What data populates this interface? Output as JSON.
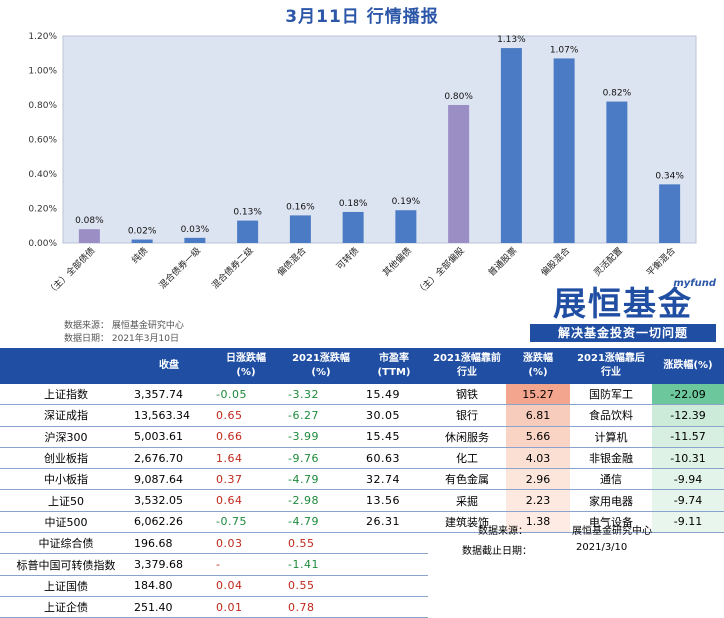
{
  "title": "3月11日  行情播报",
  "chart_data": {
    "type": "bar",
    "categories": [
      "（主）全部债债",
      "纯债",
      "混合债券一级",
      "混合债券二级",
      "偏债混合",
      "可转债",
      "其他偏债",
      "（主）全部偏股",
      "普通股票",
      "偏股混合",
      "灵活配置",
      "平衡混合"
    ],
    "values": [
      0.08,
      0.02,
      0.03,
      0.13,
      0.16,
      0.18,
      0.19,
      0.8,
      1.13,
      1.07,
      0.82,
      0.34
    ],
    "data_labels": [
      "0.08%",
      "0.02%",
      "0.03%",
      "0.13%",
      "0.16%",
      "0.18%",
      "0.19%",
      "0.80%",
      "1.13%",
      "1.07%",
      "0.82%",
      "0.34%"
    ],
    "highlight_colors": [
      "#9b8ec4",
      "#4a7bc4",
      "#4a7bc4",
      "#4a7bc4",
      "#4a7bc4",
      "#4a7bc4",
      "#4a7bc4",
      "#9b8ec4",
      "#4a7bc4",
      "#4a7bc4",
      "#4a7bc4",
      "#4a7bc4"
    ],
    "yticks": [
      "0.00%",
      "0.20%",
      "0.40%",
      "0.60%",
      "0.80%",
      "1.00%",
      "1.20%"
    ],
    "ylim": [
      0,
      1.2
    ],
    "plot_bg": "#dde4f1",
    "title": "",
    "xlabel": "",
    "ylabel": ""
  },
  "source": {
    "line1": "数据来源：  展恒基金研究中心",
    "line2": "数据日期：  2021年3月10日"
  },
  "logo": {
    "my": "myfund",
    "main": "展恒基金",
    "slogan": "解决基金投资一切问题"
  },
  "left_table": {
    "headers": [
      "",
      "收盘",
      "日涨跌幅\n(%)",
      "2021涨跌幅\n(%)",
      "市盈率\n(TTM)"
    ],
    "rows": [
      {
        "name": "上证指数",
        "close": "3,357.74",
        "day": "-0.05",
        "ytd": "-3.32",
        "pe": "15.49"
      },
      {
        "name": "深证成指",
        "close": "13,563.34",
        "day": "0.65",
        "ytd": "-6.27",
        "pe": "30.05"
      },
      {
        "name": "沪深300",
        "close": "5,003.61",
        "day": "0.66",
        "ytd": "-3.99",
        "pe": "15.45"
      },
      {
        "name": "创业板指",
        "close": "2,676.70",
        "day": "1.64",
        "ytd": "-9.76",
        "pe": "60.63"
      },
      {
        "name": "中小板指",
        "close": "9,087.64",
        "day": "0.37",
        "ytd": "-4.79",
        "pe": "32.74"
      },
      {
        "name": "上证50",
        "close": "3,532.05",
        "day": "0.64",
        "ytd": "-2.98",
        "pe": "13.56"
      },
      {
        "name": "中证500",
        "close": "6,062.26",
        "day": "-0.75",
        "ytd": "-4.79",
        "pe": "26.31"
      },
      {
        "name": "中证综合债",
        "close": "196.68",
        "day": "0.03",
        "ytd": "0.55",
        "pe": ""
      },
      {
        "name": "标普中国可转债指数",
        "close": "3,379.68",
        "day": "-",
        "ytd": "-1.41",
        "pe": ""
      },
      {
        "name": "上证国债",
        "close": "184.80",
        "day": "0.04",
        "ytd": "0.55",
        "pe": ""
      },
      {
        "name": "上证企债",
        "close": "251.40",
        "day": "0.01",
        "ytd": "0.78",
        "pe": ""
      }
    ]
  },
  "right_table": {
    "headers": [
      "2021涨幅靠前\n行业",
      "涨跌幅\n(%)",
      "2021涨幅靠后\n行业",
      "涨跌幅(%)"
    ],
    "rows": [
      {
        "top": "钢铁",
        "top_v": "15.27",
        "bot": "国防军工",
        "bot_v": "-22.09"
      },
      {
        "top": "银行",
        "top_v": "6.81",
        "bot": "食品饮料",
        "bot_v": "-12.39"
      },
      {
        "top": "休闲服务",
        "top_v": "5.66",
        "bot": "计算机",
        "bot_v": "-11.57"
      },
      {
        "top": "化工",
        "top_v": "4.03",
        "bot": "非银金融",
        "bot_v": "-10.31"
      },
      {
        "top": "有色金属",
        "top_v": "2.96",
        "bot": "通信",
        "bot_v": "-9.94"
      },
      {
        "top": "采掘",
        "top_v": "2.23",
        "bot": "家用电器",
        "bot_v": "-9.74"
      },
      {
        "top": "建筑装饰",
        "top_v": "1.38",
        "bot": "电气设备",
        "bot_v": "-9.11"
      }
    ],
    "top_colors": [
      "#f4a58e",
      "#f8ccbc",
      "#f9d3c4",
      "#fbdfd3",
      "#fce6dc",
      "#fde9e0",
      "#feece4"
    ],
    "bot_colors": [
      "#6cc79d",
      "#cdebd9",
      "#d6efe1",
      "#def2e6",
      "#e3f4ea",
      "#e5f5eb",
      "#e8f6ee"
    ],
    "note_src_label": "数据来源：",
    "note_src_value": "展恒基金研究中心",
    "note_date_label": "数据截止日期：",
    "note_date_value": "2021/3/10"
  }
}
